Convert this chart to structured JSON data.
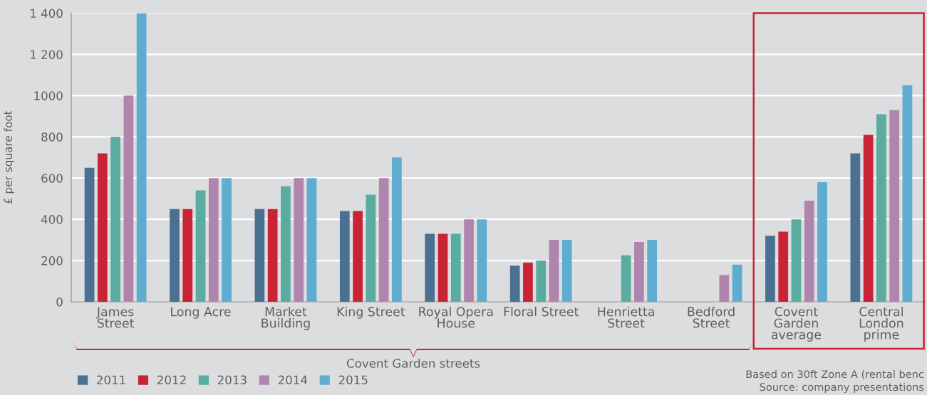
{
  "chart_data": {
    "type": "bar",
    "ylabel": "£ per square foot",
    "categories": [
      "James\nStreet",
      "Long Acre",
      "Market\nBuilding",
      "King Street",
      "Royal Opera\nHouse",
      "Floral Street",
      "Henrietta\nStreet",
      "Bedford\nStreet",
      "Covent\nGarden\naverage",
      "Central\nLondon\nprime"
    ],
    "series": [
      {
        "name": "2011",
        "color": "#4a7092",
        "values": [
          650,
          450,
          450,
          440,
          330,
          175,
          null,
          null,
          320,
          720
        ]
      },
      {
        "name": "2012",
        "color": "#c92336",
        "values": [
          720,
          450,
          450,
          440,
          330,
          190,
          null,
          null,
          340,
          810
        ]
      },
      {
        "name": "2013",
        "color": "#5aaba0",
        "values": [
          800,
          540,
          560,
          520,
          330,
          200,
          225,
          null,
          400,
          910
        ]
      },
      {
        "name": "2014",
        "color": "#af85ad",
        "values": [
          1000,
          600,
          600,
          600,
          400,
          300,
          290,
          130,
          490,
          930
        ]
      },
      {
        "name": "2015",
        "color": "#5eadd0",
        "values": [
          1400,
          600,
          600,
          700,
          400,
          300,
          300,
          180,
          580,
          1050
        ]
      }
    ],
    "ylim": [
      0,
      1400
    ],
    "yticks": [
      0,
      200,
      400,
      600,
      800,
      1000,
      {
        "value": 1200,
        "label": "1 200"
      },
      {
        "value": 1400,
        "label": "1 400"
      }
    ],
    "grid": "y",
    "legend": "bottom left",
    "annotations": [
      "Covent Garden streets",
      "Based on 30ft Zone A (rental benc",
      "Source: company presentations"
    ]
  }
}
